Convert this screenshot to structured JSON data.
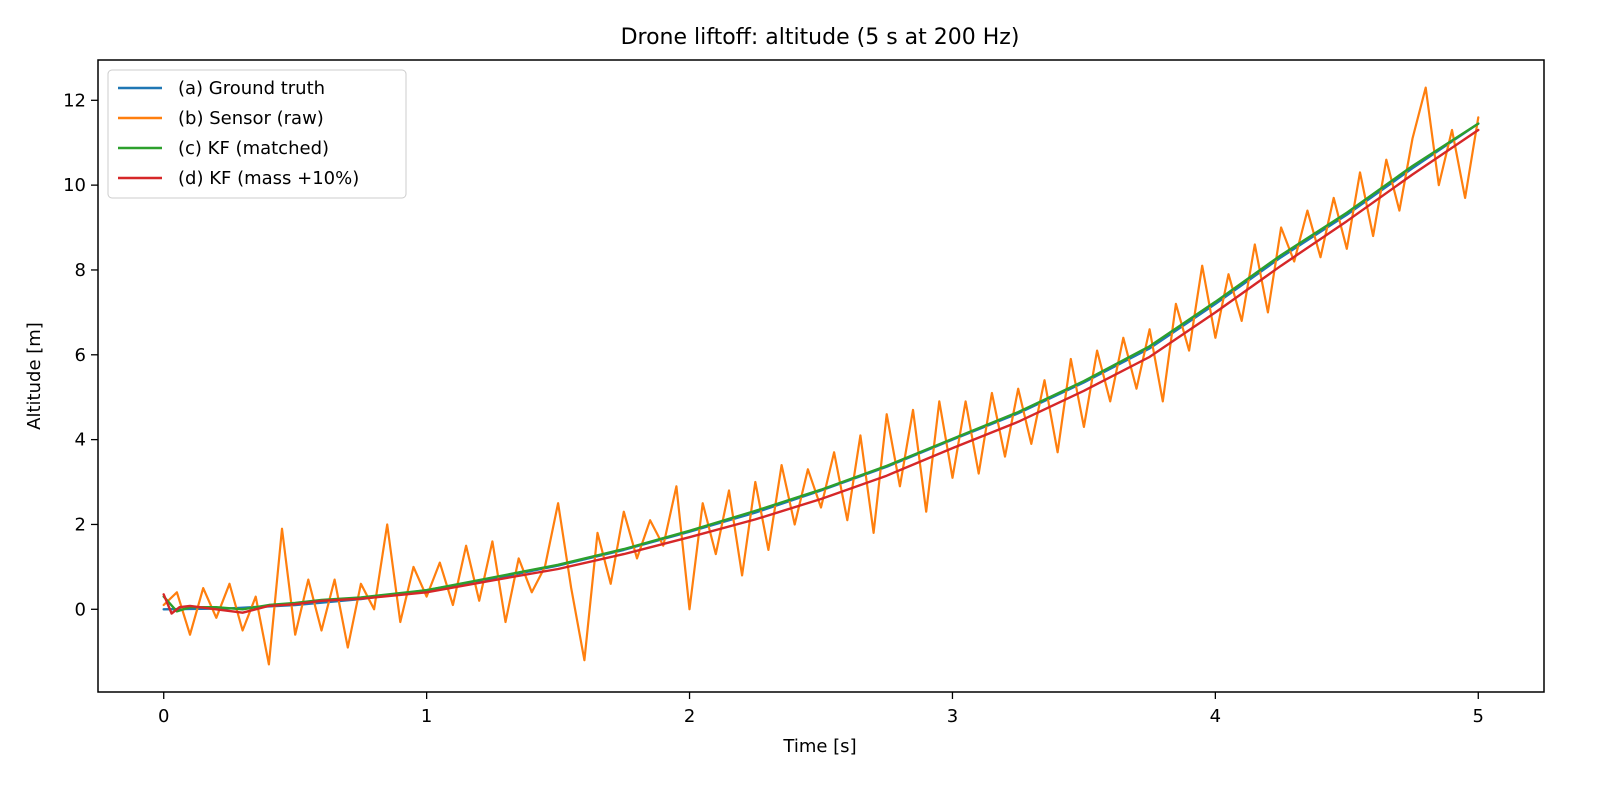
{
  "chart_data": {
    "type": "line",
    "title": "Drone liftoff: altitude (5 s at 200 Hz)",
    "xlabel": "Time [s]",
    "ylabel": "Altitude [m]",
    "xlim": [
      -0.25,
      5.25
    ],
    "ylim": [
      -1.95,
      12.95
    ],
    "xticks": [
      0,
      1,
      2,
      3,
      4,
      5
    ],
    "xtick_labels": [
      "0",
      "1",
      "2",
      "3",
      "4",
      "5"
    ],
    "yticks": [
      0,
      2,
      4,
      6,
      8,
      10,
      12
    ],
    "ytick_labels": [
      "0",
      "2",
      "4",
      "6",
      "8",
      "10",
      "12"
    ],
    "grid": false,
    "legend_position": "top-left",
    "sample_rate_hz": 200,
    "duration_s": 5,
    "series": [
      {
        "name": "(a) Ground truth",
        "color": "#1f77b4",
        "x": [
          0,
          0.25,
          0.5,
          0.75,
          1.0,
          1.25,
          1.5,
          1.75,
          2.0,
          2.25,
          2.5,
          2.75,
          3.0,
          3.25,
          3.5,
          3.75,
          4.0,
          4.25,
          4.5,
          4.75,
          5.0
        ],
        "y": [
          0,
          0.02,
          0.1,
          0.24,
          0.45,
          0.72,
          1.03,
          1.4,
          1.83,
          2.28,
          2.8,
          3.36,
          4.0,
          4.62,
          5.35,
          6.15,
          7.2,
          8.3,
          9.3,
          10.4,
          11.45
        ]
      },
      {
        "name": "(b) Sensor (raw)",
        "color": "#ff7f0e",
        "noise_std_m": 0.4,
        "x": [
          0,
          0.05,
          0.1,
          0.15,
          0.2,
          0.25,
          0.3,
          0.35,
          0.4,
          0.45,
          0.5,
          0.55,
          0.6,
          0.65,
          0.7,
          0.75,
          0.8,
          0.85,
          0.9,
          0.95,
          1.0,
          1.05,
          1.1,
          1.15,
          1.2,
          1.25,
          1.3,
          1.35,
          1.4,
          1.45,
          1.5,
          1.55,
          1.6,
          1.65,
          1.7,
          1.75,
          1.8,
          1.85,
          1.9,
          1.95,
          2.0,
          2.05,
          2.1,
          2.15,
          2.2,
          2.25,
          2.3,
          2.35,
          2.4,
          2.45,
          2.5,
          2.55,
          2.6,
          2.65,
          2.7,
          2.75,
          2.8,
          2.85,
          2.9,
          2.95,
          3.0,
          3.05,
          3.1,
          3.15,
          3.2,
          3.25,
          3.3,
          3.35,
          3.4,
          3.45,
          3.5,
          3.55,
          3.6,
          3.65,
          3.7,
          3.75,
          3.8,
          3.85,
          3.9,
          3.95,
          4.0,
          4.05,
          4.1,
          4.15,
          4.2,
          4.25,
          4.3,
          4.35,
          4.4,
          4.45,
          4.5,
          4.55,
          4.6,
          4.65,
          4.7,
          4.75,
          4.8,
          4.85,
          4.9,
          4.95,
          5.0
        ],
        "y": [
          0.1,
          0.4,
          -0.6,
          0.5,
          -0.2,
          0.6,
          -0.5,
          0.3,
          -1.3,
          1.9,
          -0.6,
          0.7,
          -0.5,
          0.7,
          -0.9,
          0.6,
          0.0,
          2.0,
          -0.3,
          1.0,
          0.3,
          1.1,
          0.1,
          1.5,
          0.2,
          1.6,
          -0.3,
          1.2,
          0.4,
          1.0,
          2.5,
          0.5,
          -1.2,
          1.8,
          0.6,
          2.3,
          1.2,
          2.1,
          1.5,
          2.9,
          0.0,
          2.5,
          1.3,
          2.8,
          0.8,
          3.0,
          1.4,
          3.4,
          2.0,
          3.3,
          2.4,
          3.7,
          2.1,
          4.1,
          1.8,
          4.6,
          2.9,
          4.7,
          2.3,
          4.9,
          3.1,
          4.9,
          3.2,
          5.1,
          3.6,
          5.2,
          3.9,
          5.4,
          3.7,
          5.9,
          4.3,
          6.1,
          4.9,
          6.4,
          5.2,
          6.6,
          4.9,
          7.2,
          6.1,
          8.1,
          6.4,
          7.9,
          6.8,
          8.6,
          7.0,
          9.0,
          8.2,
          9.4,
          8.3,
          9.7,
          8.5,
          10.3,
          8.8,
          10.6,
          9.4,
          11.1,
          12.3,
          10.0,
          11.3,
          9.7,
          11.6
        ]
      },
      {
        "name": "(c) KF (matched)",
        "color": "#2ca02c",
        "x": [
          0,
          0.05,
          0.1,
          0.2,
          0.3,
          0.4,
          0.5,
          0.6,
          0.75,
          1.0,
          1.25,
          1.5,
          1.75,
          2.0,
          2.25,
          2.5,
          2.75,
          3.0,
          3.25,
          3.5,
          3.75,
          4.0,
          4.25,
          4.5,
          4.75,
          5.0
        ],
        "y": [
          0.3,
          -0.05,
          0.05,
          0.05,
          0.0,
          0.1,
          0.15,
          0.22,
          0.28,
          0.45,
          0.75,
          1.05,
          1.42,
          1.85,
          2.32,
          2.82,
          3.38,
          4.02,
          4.65,
          5.38,
          6.2,
          7.25,
          8.35,
          9.35,
          10.45,
          11.45
        ]
      },
      {
        "name": "(d) KF (mass +10%)",
        "color": "#d62728",
        "x": [
          0,
          0.03,
          0.06,
          0.1,
          0.2,
          0.3,
          0.4,
          0.5,
          0.6,
          0.75,
          1.0,
          1.25,
          1.5,
          1.75,
          2.0,
          2.25,
          2.5,
          2.75,
          3.0,
          3.25,
          3.5,
          3.75,
          4.0,
          4.25,
          4.5,
          4.75,
          5.0
        ],
        "y": [
          0.35,
          -0.1,
          0.05,
          0.08,
          0.0,
          -0.08,
          0.08,
          0.12,
          0.2,
          0.25,
          0.4,
          0.68,
          0.95,
          1.3,
          1.7,
          2.12,
          2.6,
          3.15,
          3.8,
          4.42,
          5.15,
          5.95,
          7.0,
          8.1,
          9.15,
          10.25,
          11.3
        ]
      }
    ]
  }
}
